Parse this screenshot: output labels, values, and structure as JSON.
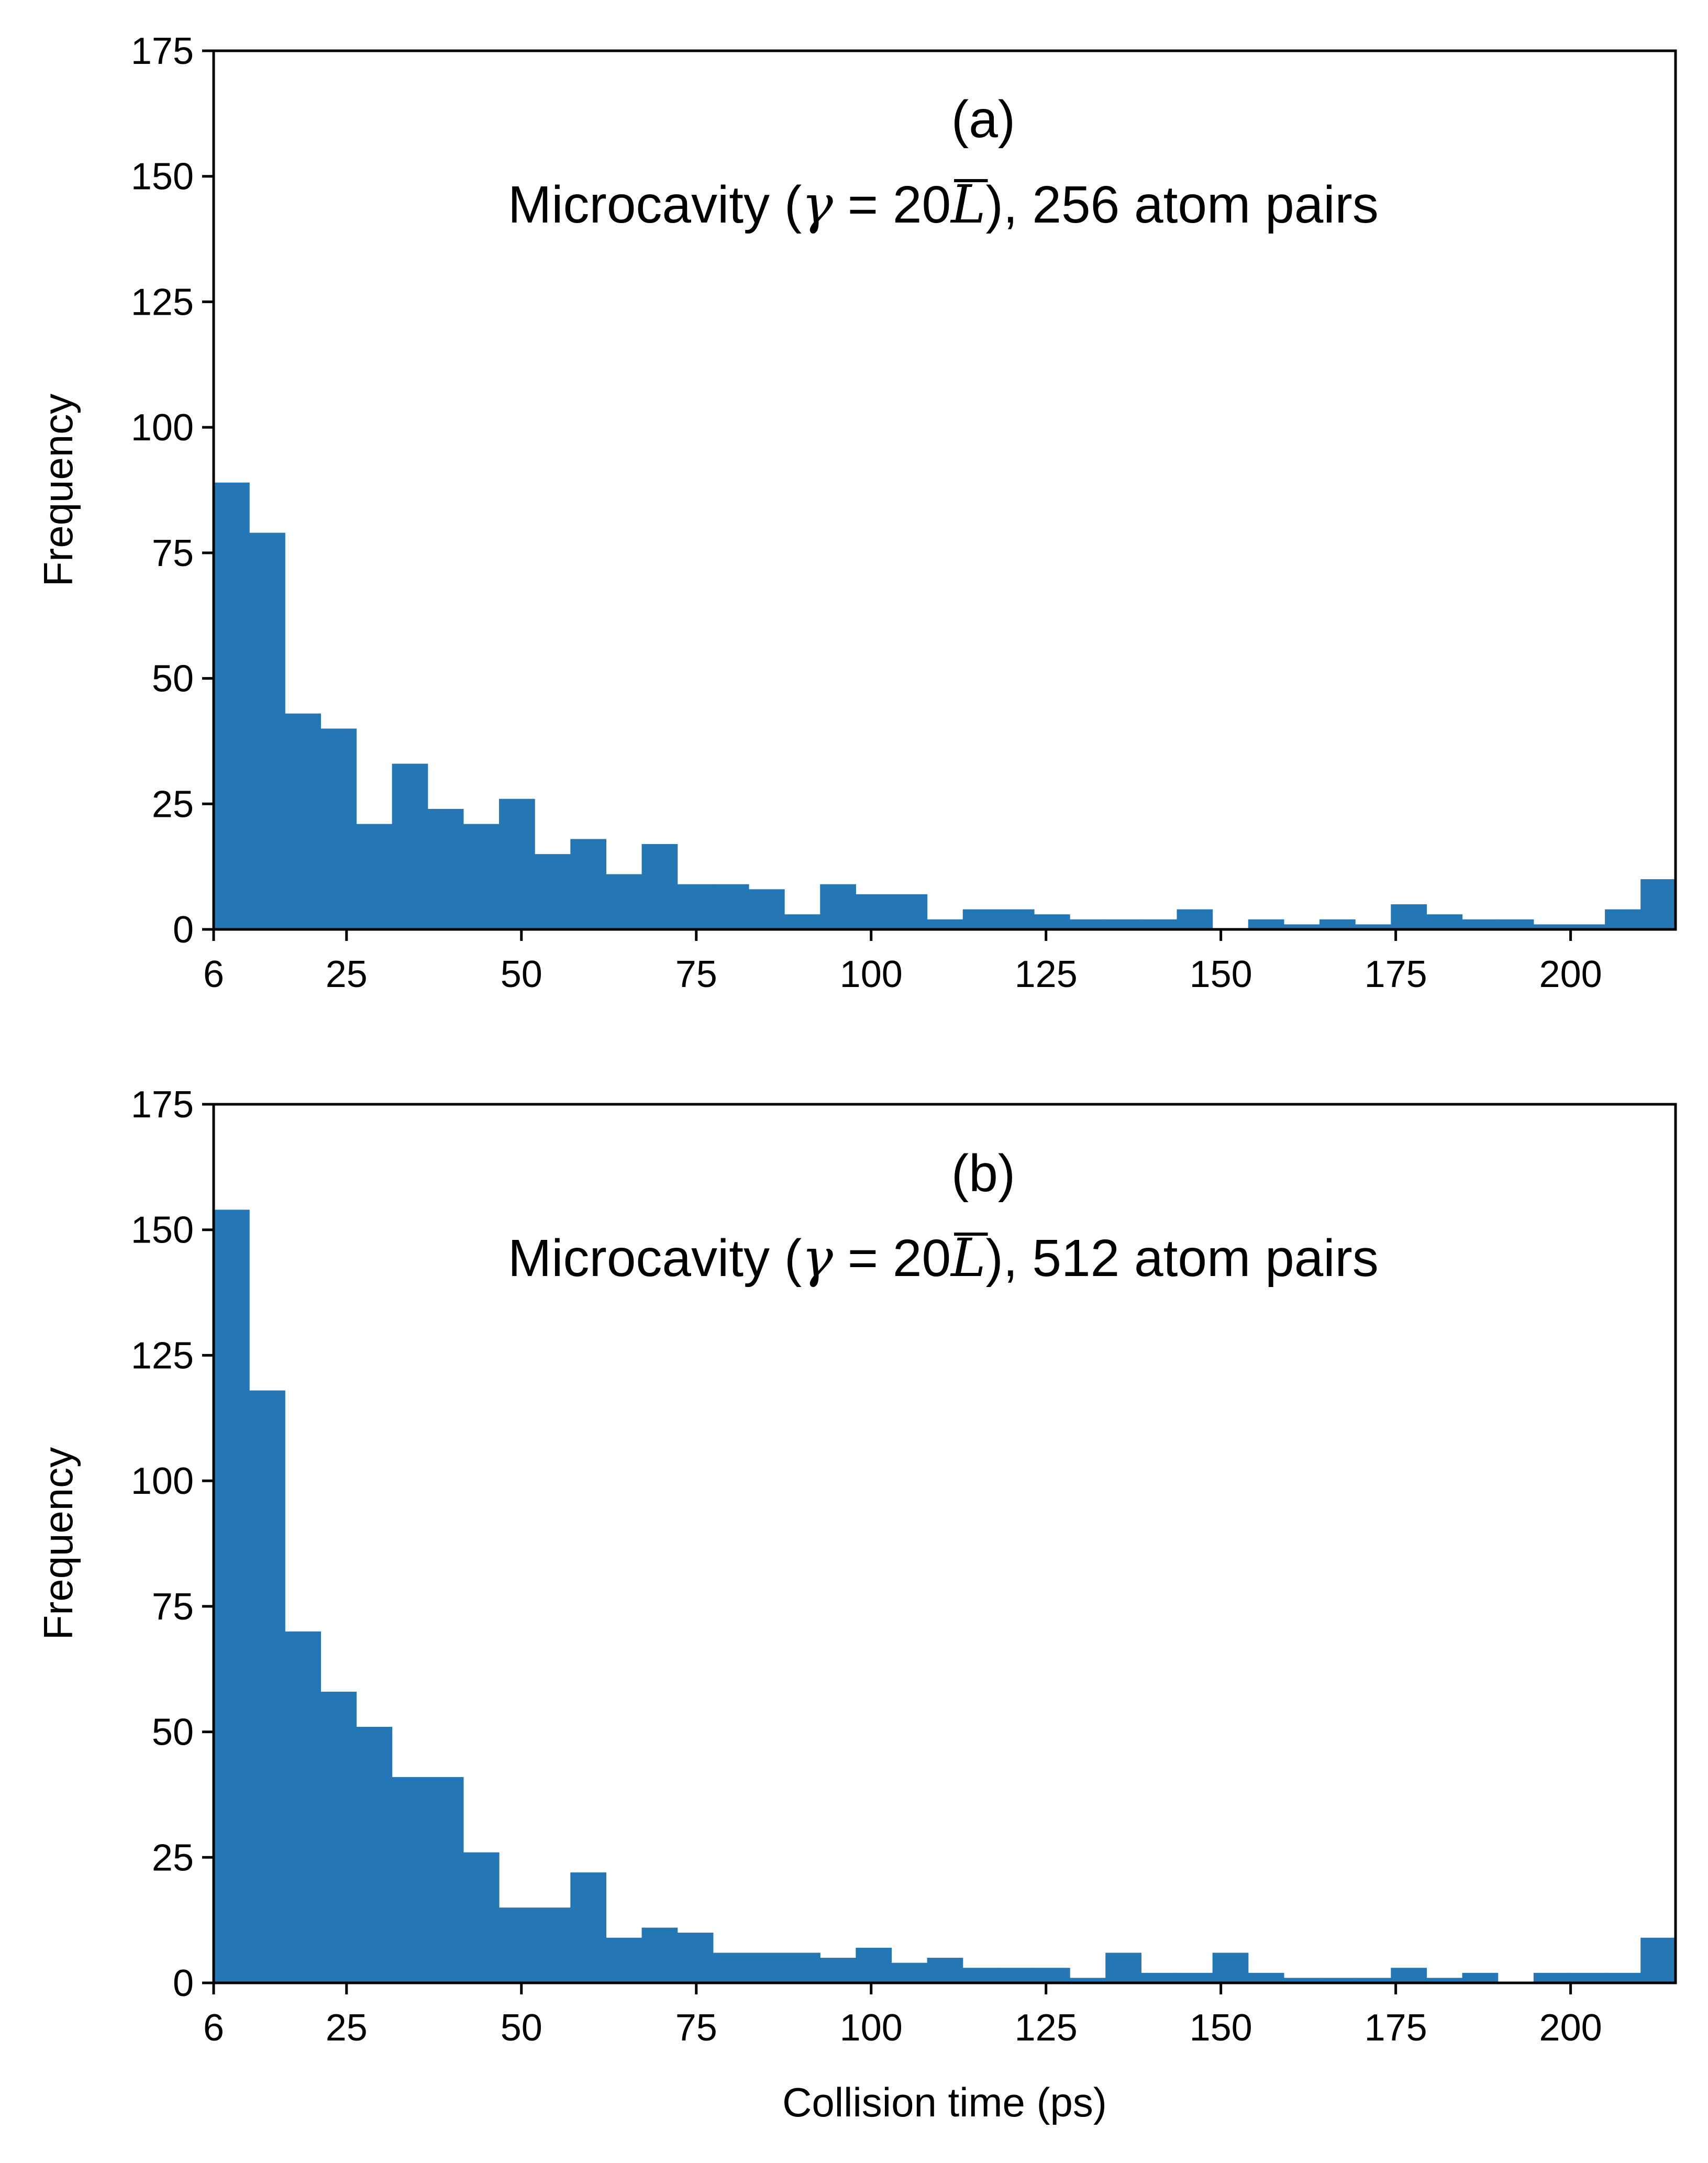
{
  "figure": {
    "ylabel": "Frequency",
    "xlabel": "Collision time (ps)"
  },
  "colors": {
    "bar": "#2477b4",
    "axis": "#000000",
    "background": "#ffffff"
  },
  "chart_data": [
    {
      "type": "bar",
      "histogram": true,
      "panel_label": "(a)",
      "annotation": {
        "prefix": "Microcavity (",
        "gamma": "γ",
        "equals": " = 20",
        "lbar": "L",
        "suffix": "), 256 atom pairs"
      },
      "ylabel": "Frequency",
      "xlabel": "",
      "xlim": [
        6,
        215
      ],
      "ylim": [
        0,
        175
      ],
      "xticks": [
        6,
        25,
        50,
        75,
        100,
        125,
        150,
        175,
        200
      ],
      "yticks": [
        0,
        25,
        50,
        75,
        100,
        125,
        150,
        175
      ],
      "bin_start": 6,
      "bin_width": 5.1,
      "values": [
        89,
        79,
        43,
        40,
        21,
        33,
        24,
        21,
        26,
        15,
        18,
        11,
        17,
        9,
        9,
        8,
        3,
        9,
        7,
        7,
        2,
        4,
        4,
        3,
        2,
        2,
        2,
        4,
        0,
        2,
        1,
        2,
        1,
        5,
        3,
        2,
        2,
        1,
        1,
        4,
        10
      ]
    },
    {
      "type": "bar",
      "histogram": true,
      "panel_label": "(b)",
      "annotation": {
        "prefix": "Microcavity (",
        "gamma": "γ",
        "equals": " = 20",
        "lbar": "L",
        "suffix": "), 512 atom pairs"
      },
      "ylabel": "Frequency",
      "xlabel": "Collision time (ps)",
      "xlim": [
        6,
        215
      ],
      "ylim": [
        0,
        175
      ],
      "xticks": [
        6,
        25,
        50,
        75,
        100,
        125,
        150,
        175,
        200
      ],
      "yticks": [
        0,
        25,
        50,
        75,
        100,
        125,
        150,
        175
      ],
      "bin_start": 6,
      "bin_width": 5.1,
      "values": [
        154,
        118,
        70,
        58,
        51,
        41,
        41,
        26,
        15,
        15,
        22,
        9,
        11,
        10,
        6,
        6,
        6,
        5,
        7,
        4,
        5,
        3,
        3,
        3,
        1,
        6,
        2,
        2,
        6,
        2,
        1,
        1,
        1,
        3,
        1,
        2,
        0,
        2,
        2,
        2,
        9
      ]
    }
  ]
}
